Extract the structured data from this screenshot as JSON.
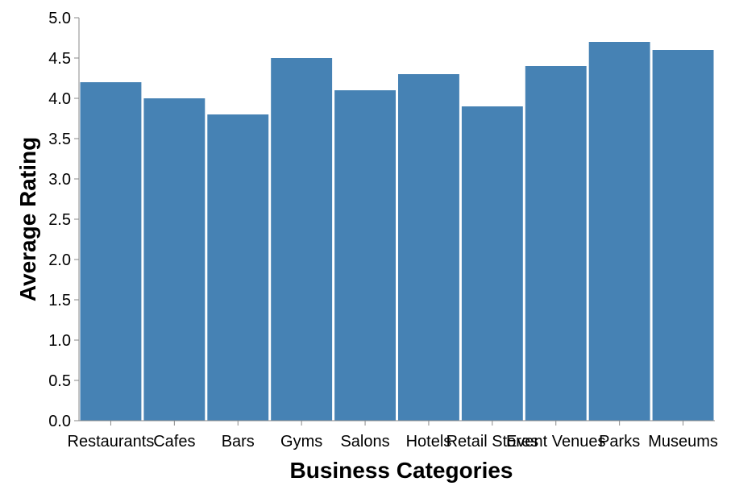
{
  "chart_data": {
    "type": "bar",
    "title": "",
    "xlabel": "Business Categories",
    "ylabel": "Average Rating",
    "categories": [
      "Restaurants",
      "Cafes",
      "Bars",
      "Gyms",
      "Salons",
      "Hotels",
      "Retail Stores",
      "Event Venues",
      "Parks",
      "Museums"
    ],
    "values": [
      4.2,
      4.0,
      3.8,
      4.5,
      4.1,
      4.3,
      3.9,
      4.4,
      4.7,
      4.6
    ],
    "ylim": [
      0,
      5
    ],
    "yticks": [
      "0.0",
      "0.5",
      "1.0",
      "1.5",
      "2.0",
      "2.5",
      "3.0",
      "3.5",
      "4.0",
      "4.5",
      "5.0"
    ],
    "grid": false,
    "colors": {
      "bar": "#4682b4",
      "axis": "#888888"
    }
  }
}
